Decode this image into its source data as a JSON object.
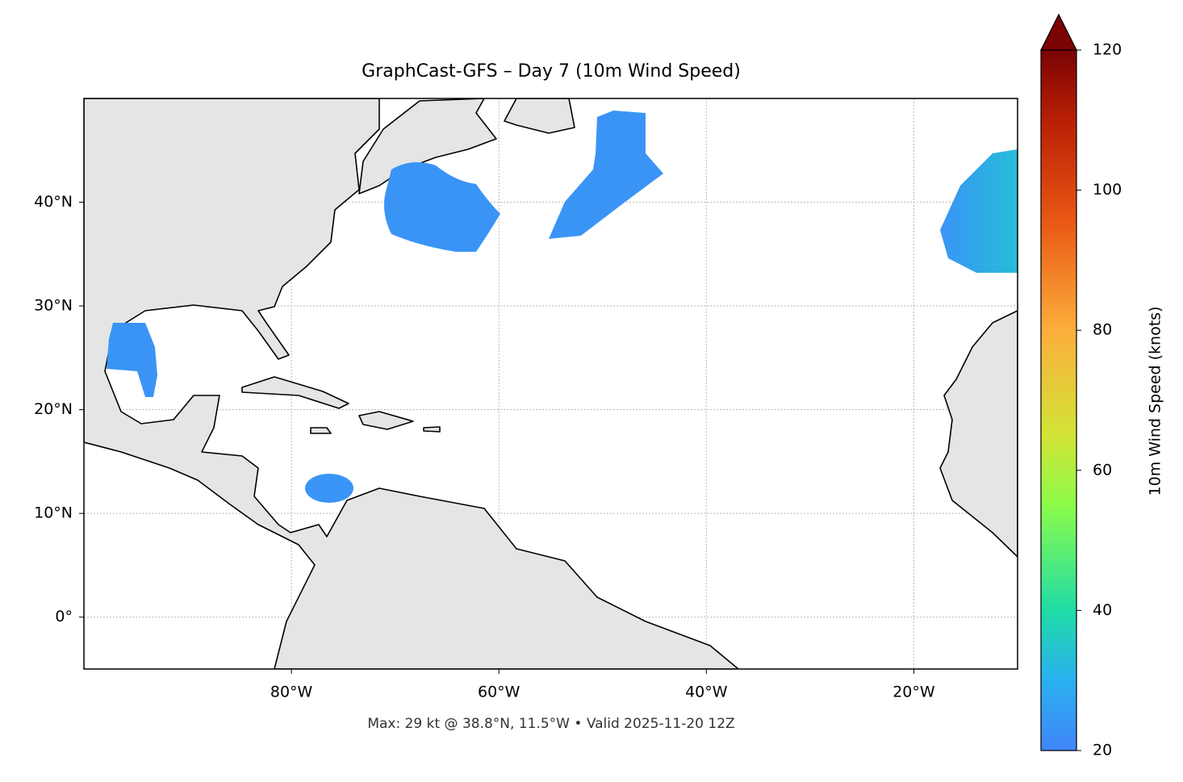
{
  "chart_data": {
    "type": "map",
    "title": "GraphCast-GFS – Day 7 (10m Wind Speed)",
    "annotation": "Max: 29 kt @ 38.8°N, 11.5°W • Valid 2025-11-20 12Z",
    "xlim": [
      -100,
      -10
    ],
    "ylim": [
      -5,
      50
    ],
    "xticks": [
      {
        "value": -80,
        "label": "80°W"
      },
      {
        "value": -60,
        "label": "60°W"
      },
      {
        "value": -40,
        "label": "40°W"
      },
      {
        "value": -20,
        "label": "20°W"
      }
    ],
    "yticks": [
      {
        "value": 0,
        "label": "0°"
      },
      {
        "value": 10,
        "label": "10°N"
      },
      {
        "value": 20,
        "label": "20°N"
      },
      {
        "value": 30,
        "label": "30°N"
      },
      {
        "value": 40,
        "label": "40°N"
      }
    ],
    "grid": true,
    "colorbar": {
      "label": "10m Wind Speed (knots)",
      "lim": [
        20,
        120
      ],
      "ticks": [
        20,
        40,
        60,
        80,
        100,
        120
      ]
    }
  }
}
